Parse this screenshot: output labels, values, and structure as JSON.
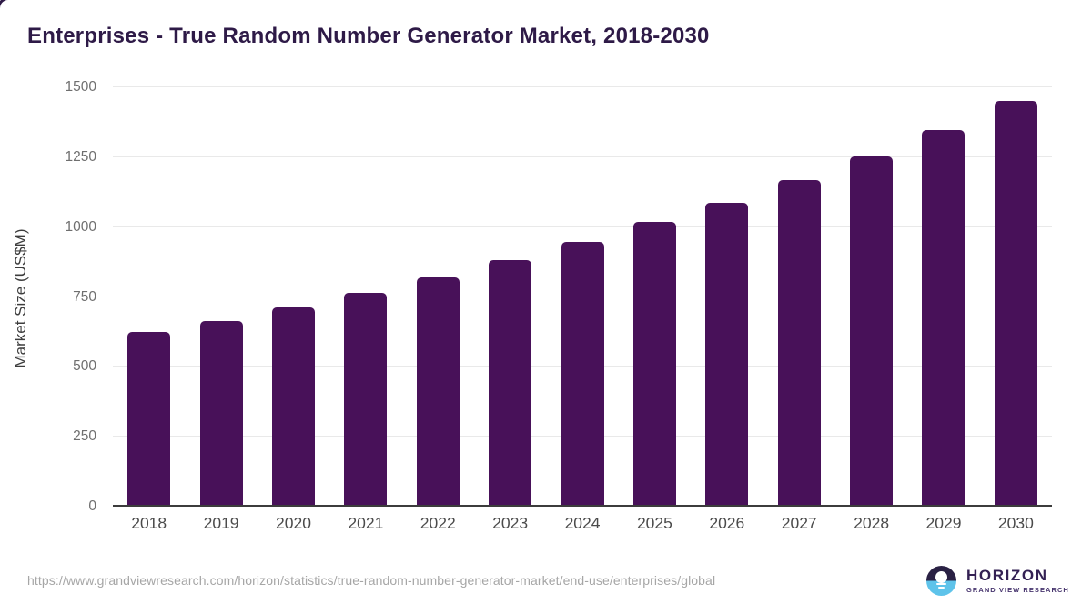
{
  "chart_data": {
    "type": "bar",
    "title": "Enterprises - True Random Number Generator Market, 2018-2030",
    "categories": [
      "2018",
      "2019",
      "2020",
      "2021",
      "2022",
      "2023",
      "2024",
      "2025",
      "2026",
      "2027",
      "2028",
      "2029",
      "2030"
    ],
    "values": [
      624,
      665,
      713,
      764,
      820,
      881,
      948,
      1017,
      1088,
      1167,
      1253,
      1348,
      1450
    ],
    "xlabel": "",
    "ylabel": "Market Size (US$M)",
    "ylim": [
      0,
      1500
    ],
    "yticks": [
      0,
      250,
      500,
      750,
      1000,
      1250,
      1500
    ],
    "grid": true,
    "legend": "none",
    "bar_color": "#481159"
  },
  "colors": {
    "bar": "#481159",
    "title": "#2e1a47",
    "logo_dark": "#2a2144",
    "logo_blue": "#5ec3ea",
    "logo_text": "#332053"
  },
  "footer": {
    "source_url": "https://www.grandviewresearch.com/horizon/statistics/true-random-number-generator-market/end-use/enterprises/global",
    "logo": {
      "title": "HORIZON",
      "subtitle": "GRAND VIEW RESEARCH"
    }
  }
}
